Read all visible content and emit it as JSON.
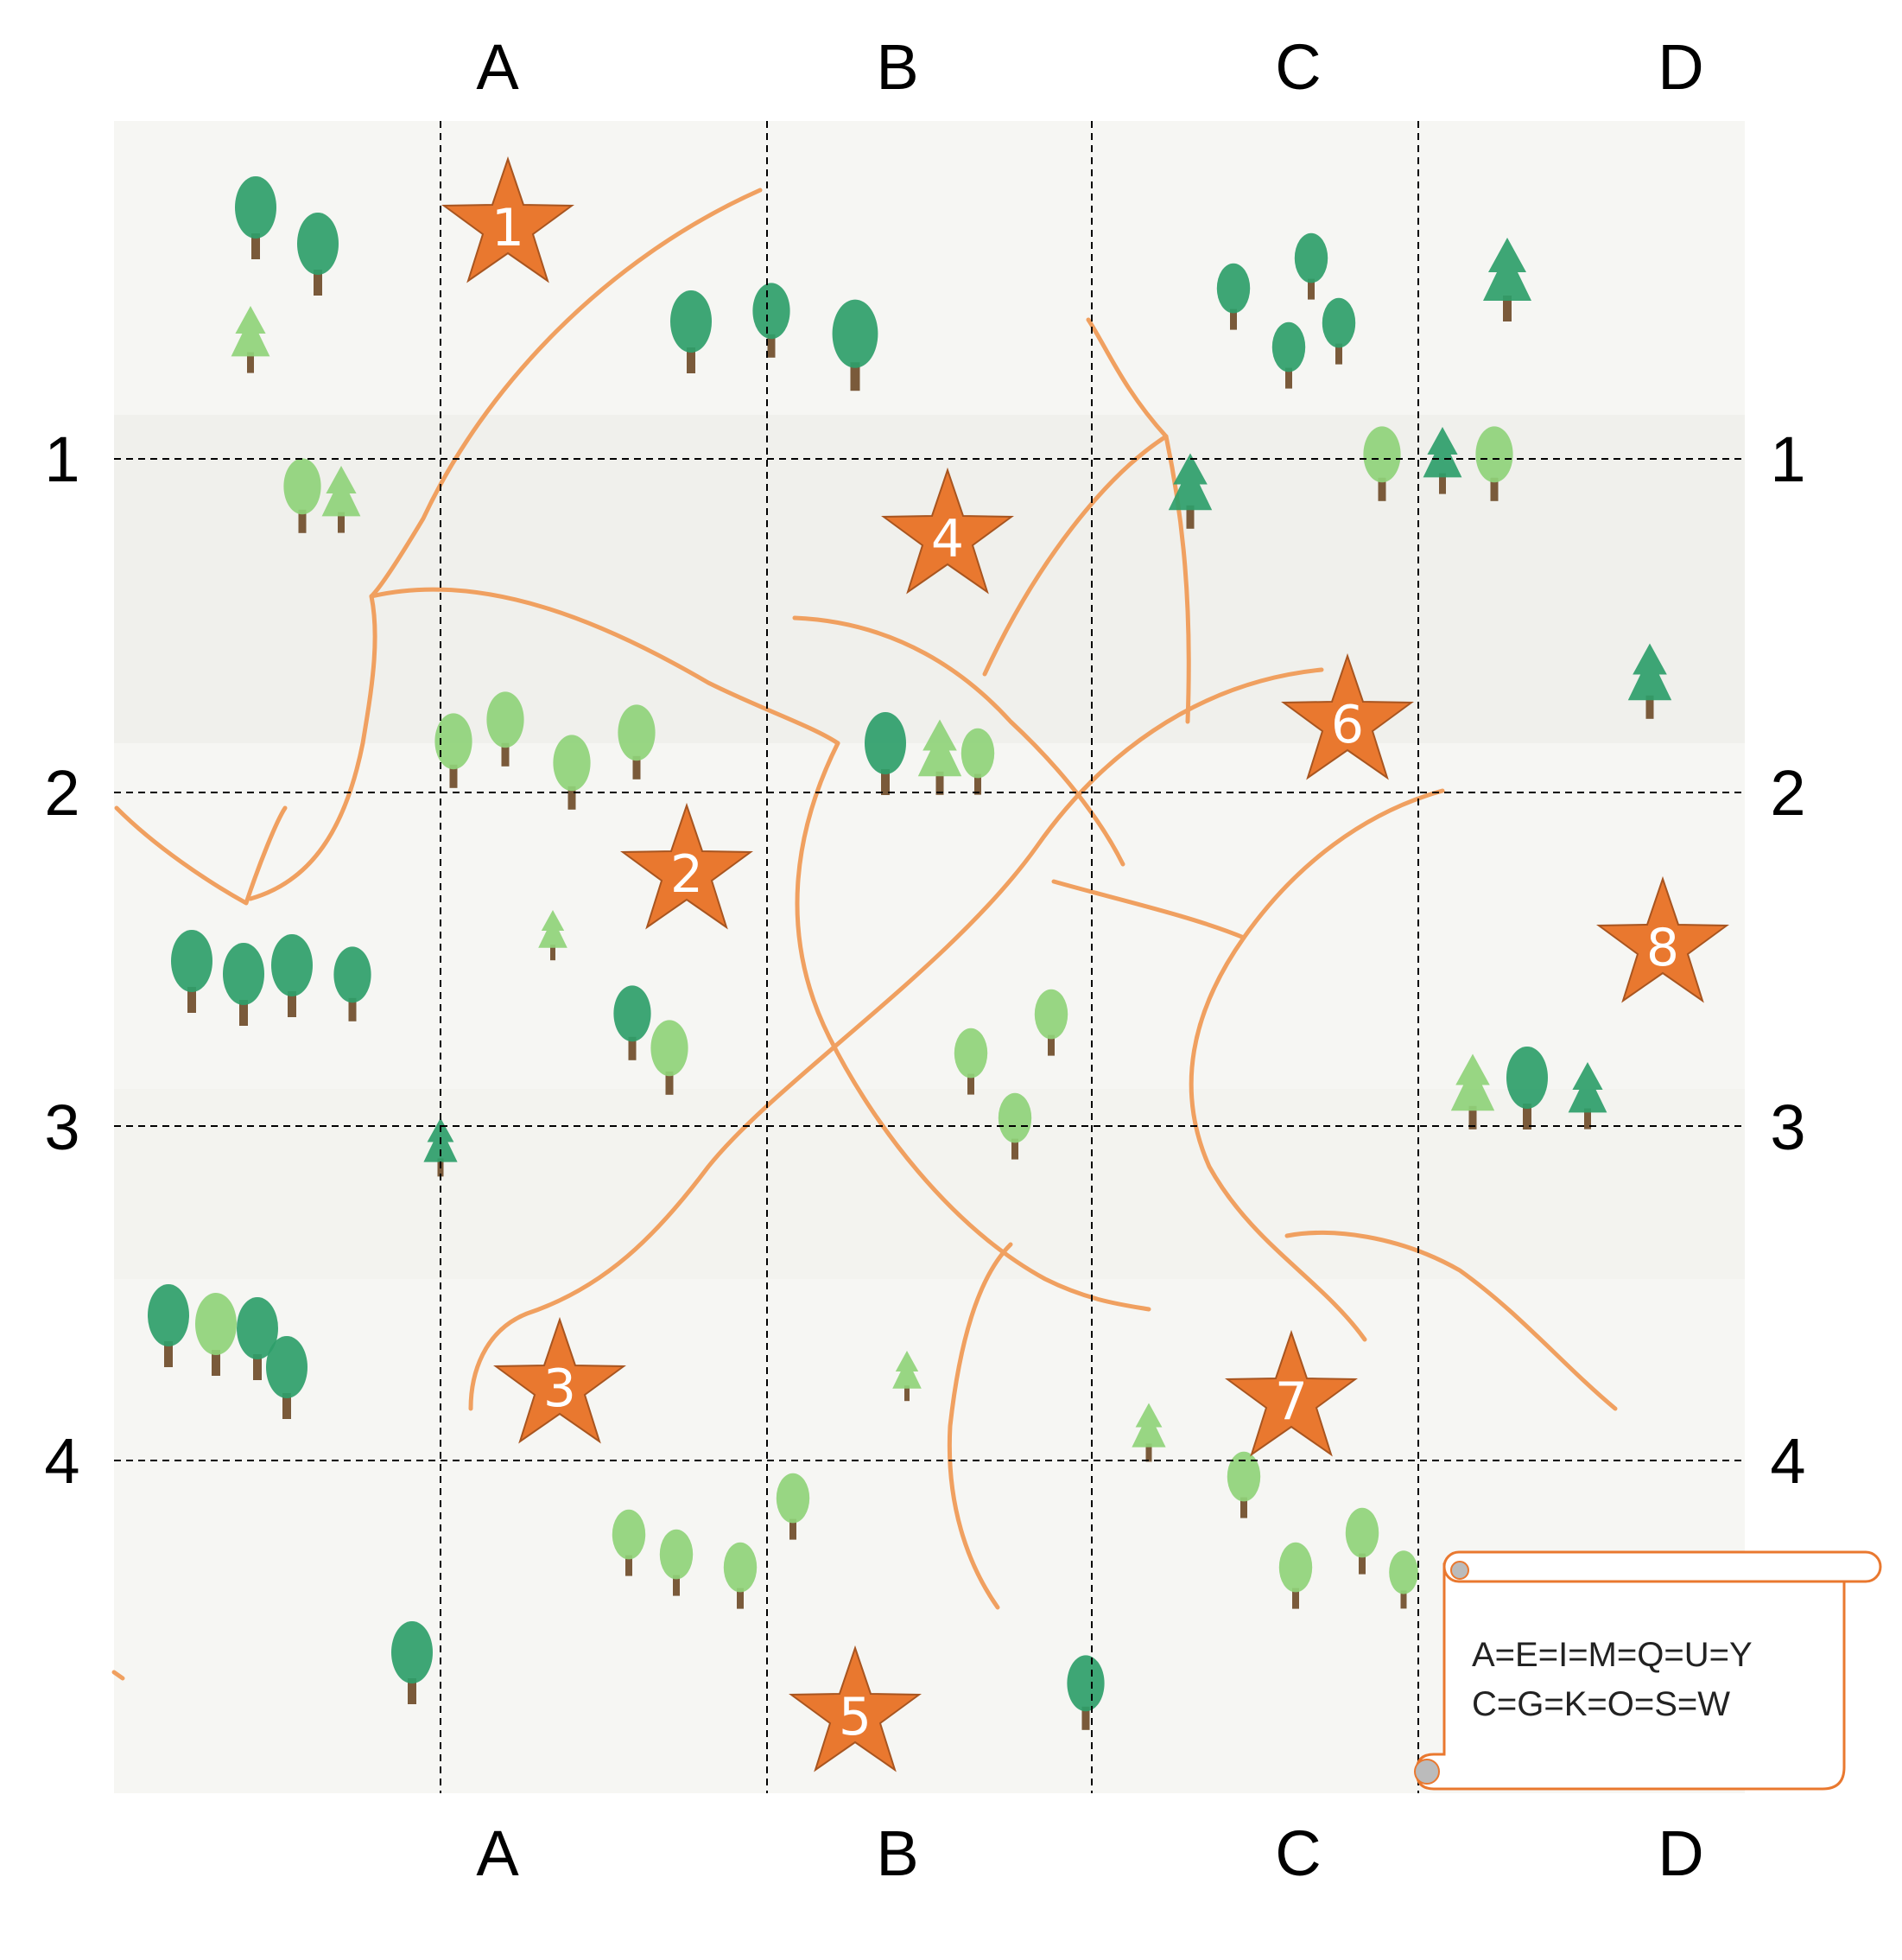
{
  "columns": [
    "A",
    "B",
    "C",
    "D"
  ],
  "rows": [
    "1",
    "2",
    "3",
    "4"
  ],
  "stars": [
    {
      "label": "1",
      "cell": "A1"
    },
    {
      "label": "4",
      "cell": "B1"
    },
    {
      "label": "6",
      "cell": "C1"
    },
    {
      "label": "2",
      "cell": "A2"
    },
    {
      "label": "8",
      "cell": "D2"
    },
    {
      "label": "3",
      "cell": "A3"
    },
    {
      "label": "7",
      "cell": "C3"
    },
    {
      "label": "5",
      "cell": "B4"
    }
  ],
  "legend": {
    "line1": "A=E=I=M=Q=U=Y",
    "line2": "C=G=K=O=S=W"
  },
  "colors": {
    "star": "#e9782f",
    "trail": "#f0a060",
    "tree_dark": "#2e9e6a",
    "tree_light": "#8fd37a",
    "trunk": "#7a5a3a",
    "scroll": "#e9782f"
  }
}
